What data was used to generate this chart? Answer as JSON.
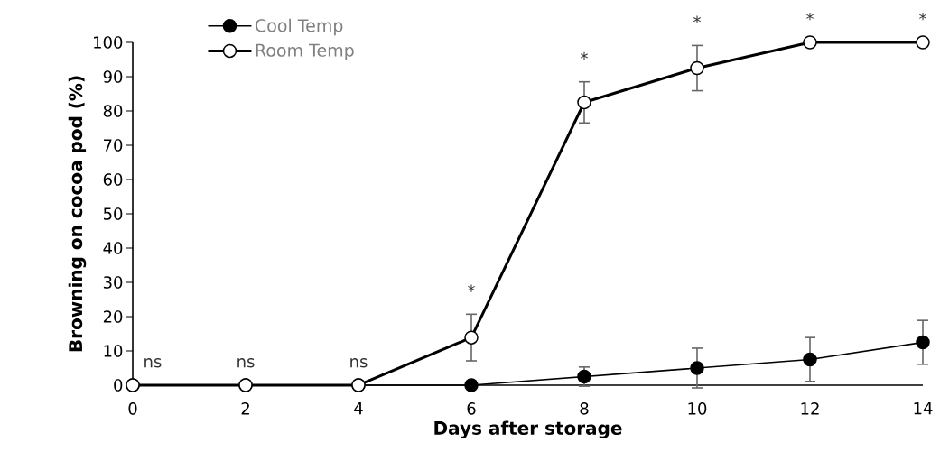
{
  "chart_data": {
    "type": "line",
    "xlabel": "Days after storage",
    "ylabel": "Browning on cocoa pod (%)",
    "x": [
      0,
      2,
      4,
      6,
      8,
      10,
      12,
      14
    ],
    "series": [
      {
        "name": "Cool Temp",
        "color": "#000000",
        "values": [
          0,
          0,
          0,
          0,
          2.5,
          5,
          7.5,
          12.5
        ],
        "errors": [
          null,
          null,
          null,
          null,
          2.8,
          5.8,
          6.4,
          6.4
        ]
      },
      {
        "name": "Room Temp",
        "color": "#000000",
        "values": [
          0,
          0,
          0,
          13.9,
          82.5,
          92.5,
          100,
          100
        ],
        "errors": [
          null,
          null,
          null,
          6.8,
          6,
          6.6,
          null,
          null
        ]
      }
    ],
    "xlim": [
      0,
      14
    ],
    "ylim": [
      0,
      100
    ],
    "xticks": [
      0,
      2,
      4,
      6,
      8,
      10,
      12,
      14
    ],
    "yticks": [
      0,
      10,
      20,
      30,
      40,
      50,
      60,
      70,
      80,
      90,
      100
    ],
    "marker": "circle",
    "line_style": "solid",
    "legend": "top left",
    "grid": false,
    "annotations": [
      {
        "text": "ns",
        "x": 0,
        "y": 0
      },
      {
        "text": "ns",
        "x": 2,
        "y": 0
      },
      {
        "text": "ns",
        "x": 4,
        "y": 0
      },
      {
        "text": "*",
        "x": 6,
        "y": 13.9
      },
      {
        "text": "*",
        "x": 8,
        "y": 82.5
      },
      {
        "text": "*",
        "x": 10,
        "y": 92.5
      },
      {
        "text": "*",
        "x": 12,
        "y": 100
      },
      {
        "text": "*",
        "x": 14,
        "y": 100
      }
    ]
  }
}
